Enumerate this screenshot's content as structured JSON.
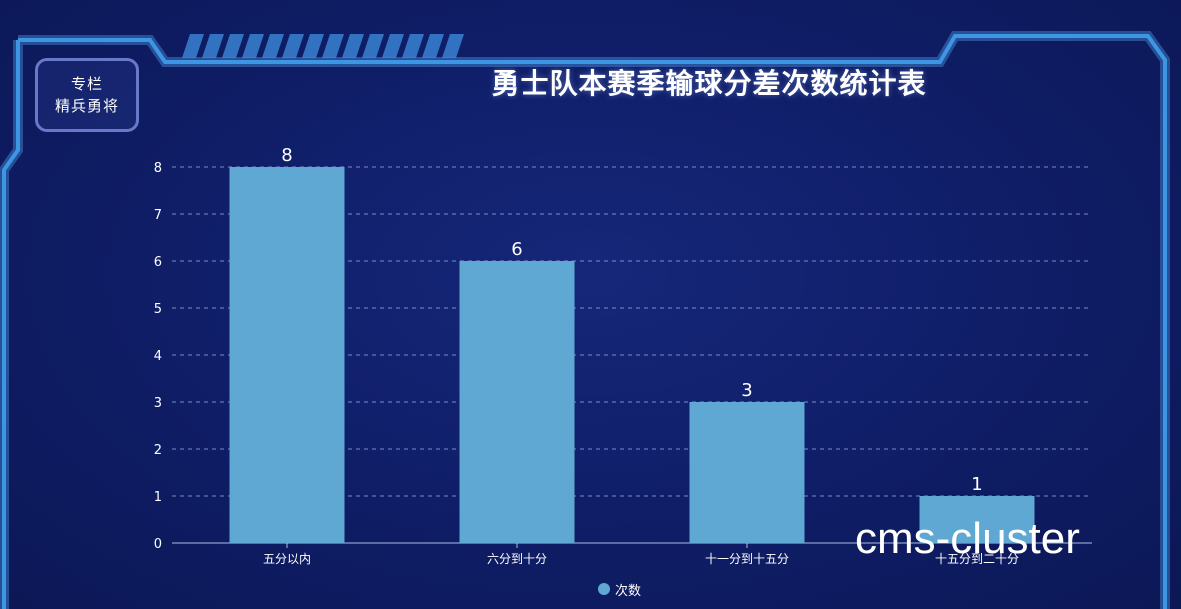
{
  "badge": {
    "line1": "专栏",
    "line2": "精兵勇将"
  },
  "watermark": "cms-cluster",
  "colors": {
    "background": "#0d1a5c",
    "frame": "#2e86d6",
    "bar": "#5fa8d3",
    "grid": "#9fb0e0",
    "text": "#ffffff"
  },
  "chart_data": {
    "type": "bar",
    "title": "勇士队本赛季输球分差次数统计表",
    "categories": [
      "五分以内",
      "六分到十分",
      "十一分到十五分",
      "十五分到二十分"
    ],
    "series": [
      {
        "name": "次数",
        "values": [
          8,
          6,
          3,
          1
        ]
      }
    ],
    "yticks": [
      0,
      1,
      2,
      3,
      4,
      5,
      6,
      7,
      8
    ],
    "ylim": [
      0,
      8
    ],
    "grid": true,
    "legend_position": "bottom-center",
    "data_labels": true
  }
}
